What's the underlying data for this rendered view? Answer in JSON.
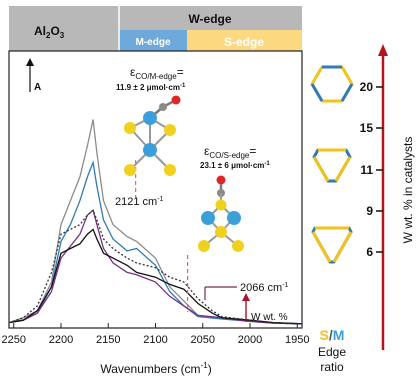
{
  "chart_data": {
    "type": "line",
    "xlabel": "Wavenumbers (cm",
    "xlabel_sup": "-1",
    "xlabel_close": ")",
    "x_ticks": [
      2250,
      2200,
      2150,
      2100,
      2050,
      2000,
      1950
    ],
    "xlim": [
      2255,
      1945
    ],
    "y_axis_label": "A",
    "header": {
      "left_label": "Al",
      "left_sub": "2",
      "left_mid": "O",
      "left_sub2": "3",
      "right_label": "W-edge",
      "m_edge_label": "M-edge",
      "s_edge_label": "S-edge",
      "colors": {
        "header_grey": "#b8b8b8",
        "m_edge": "#6ea9dc",
        "s_edge": "#fcd980"
      }
    },
    "annotations": {
      "peak1_eps_sub": "CO/M-edge",
      "peak1_value": "11.9 ± 2 μmol·cm",
      "peak1_value_sup": "-1",
      "peak1_position": "2121 cm",
      "peak1_position_sup": "-1",
      "peak1_x": 2121,
      "peak2_eps_sub": "CO/S-edge",
      "peak2_value": "23.1 ± 6 μmol·cm",
      "peak2_value_sup": "-1",
      "peak2_position": "2066 cm",
      "peak2_position_sup": "-1",
      "peak2_x": 2066,
      "arrow_label": "W wt. %",
      "eps_symbol": "ε",
      "eq_sign": "="
    },
    "right_axis": {
      "label": "W wt. % in catalysts",
      "ticks": [
        {
          "label": "20",
          "v": 20
        },
        {
          "label": "15",
          "v": 15
        },
        {
          "label": "11",
          "v": 11
        },
        {
          "label": "9",
          "v": 9
        },
        {
          "label": "6",
          "v": 6
        }
      ],
      "ratio_s": "S",
      "ratio_slash": "/",
      "ratio_m": "M",
      "ratio_line1": "Edge",
      "ratio_line2": "ratio"
    },
    "series": [
      {
        "color": "#8c8c8c",
        "dash": "",
        "points": [
          [
            2255,
            0.01
          ],
          [
            2240,
            0.03
          ],
          [
            2225,
            0.06
          ],
          [
            2210,
            0.18
          ],
          [
            2200,
            0.42
          ],
          [
            2190,
            0.52
          ],
          [
            2180,
            0.62
          ],
          [
            2172,
            0.75
          ],
          [
            2166,
            0.86
          ],
          [
            2162,
            0.72
          ],
          [
            2155,
            0.52
          ],
          [
            2145,
            0.42
          ],
          [
            2130,
            0.37
          ],
          [
            2120,
            0.35
          ],
          [
            2100,
            0.28
          ],
          [
            2085,
            0.16
          ],
          [
            2070,
            0.1
          ],
          [
            2055,
            0.04
          ],
          [
            2030,
            0.03
          ],
          [
            2000,
            0.02
          ],
          [
            1975,
            0.01
          ],
          [
            1945,
            0.005
          ]
        ]
      },
      {
        "color": "#2f7bb6",
        "dash": "",
        "points": [
          [
            2255,
            0.01
          ],
          [
            2240,
            0.02
          ],
          [
            2225,
            0.05
          ],
          [
            2210,
            0.16
          ],
          [
            2200,
            0.35
          ],
          [
            2190,
            0.42
          ],
          [
            2180,
            0.52
          ],
          [
            2172,
            0.62
          ],
          [
            2166,
            0.68
          ],
          [
            2162,
            0.58
          ],
          [
            2155,
            0.44
          ],
          [
            2145,
            0.36
          ],
          [
            2130,
            0.31
          ],
          [
            2120,
            0.32
          ],
          [
            2100,
            0.25
          ],
          [
            2085,
            0.14
          ],
          [
            2070,
            0.08
          ],
          [
            2055,
            0.035
          ],
          [
            2030,
            0.025
          ],
          [
            2000,
            0.015
          ],
          [
            1975,
            0.008
          ],
          [
            1945,
            0.005
          ]
        ]
      },
      {
        "color": "#7b2d86",
        "dash": "",
        "points": [
          [
            2255,
            0.01
          ],
          [
            2240,
            0.02
          ],
          [
            2225,
            0.05
          ],
          [
            2210,
            0.14
          ],
          [
            2200,
            0.28
          ],
          [
            2190,
            0.33
          ],
          [
            2180,
            0.38
          ],
          [
            2172,
            0.46
          ],
          [
            2166,
            0.48
          ],
          [
            2162,
            0.42
          ],
          [
            2155,
            0.32
          ],
          [
            2145,
            0.26
          ],
          [
            2130,
            0.22
          ],
          [
            2120,
            0.21
          ],
          [
            2100,
            0.18
          ],
          [
            2085,
            0.12
          ],
          [
            2070,
            0.08
          ],
          [
            2055,
            0.04
          ],
          [
            2030,
            0.03
          ],
          [
            2000,
            0.015
          ],
          [
            1975,
            0.008
          ],
          [
            1945,
            0.005
          ]
        ]
      },
      {
        "color": "#111111",
        "dash": "",
        "points": [
          [
            2255,
            0.01
          ],
          [
            2240,
            0.02
          ],
          [
            2225,
            0.06
          ],
          [
            2210,
            0.16
          ],
          [
            2200,
            0.3
          ],
          [
            2190,
            0.32
          ],
          [
            2180,
            0.34
          ],
          [
            2172,
            0.38
          ],
          [
            2166,
            0.4
          ],
          [
            2162,
            0.36
          ],
          [
            2155,
            0.3
          ],
          [
            2145,
            0.28
          ],
          [
            2130,
            0.25
          ],
          [
            2120,
            0.22
          ],
          [
            2100,
            0.2
          ],
          [
            2085,
            0.17
          ],
          [
            2070,
            0.15
          ],
          [
            2055,
            0.09
          ],
          [
            2040,
            0.05
          ],
          [
            2030,
            0.03
          ],
          [
            2000,
            0.02
          ],
          [
            1975,
            0.01
          ],
          [
            1945,
            0.005
          ]
        ]
      },
      {
        "color": "#333333",
        "dash": "2,2",
        "points": [
          [
            2255,
            0.01
          ],
          [
            2240,
            0.03
          ],
          [
            2225,
            0.08
          ],
          [
            2210,
            0.22
          ],
          [
            2200,
            0.38
          ],
          [
            2190,
            0.4
          ],
          [
            2180,
            0.42
          ],
          [
            2172,
            0.46
          ],
          [
            2166,
            0.48
          ],
          [
            2162,
            0.44
          ],
          [
            2155,
            0.36
          ],
          [
            2145,
            0.32
          ],
          [
            2130,
            0.28
          ],
          [
            2120,
            0.26
          ],
          [
            2100,
            0.24
          ],
          [
            2085,
            0.2
          ],
          [
            2070,
            0.18
          ],
          [
            2055,
            0.11
          ],
          [
            2040,
            0.06
          ],
          [
            2030,
            0.035
          ],
          [
            2000,
            0.02
          ],
          [
            1975,
            0.01
          ],
          [
            1945,
            0.005
          ]
        ]
      }
    ]
  }
}
